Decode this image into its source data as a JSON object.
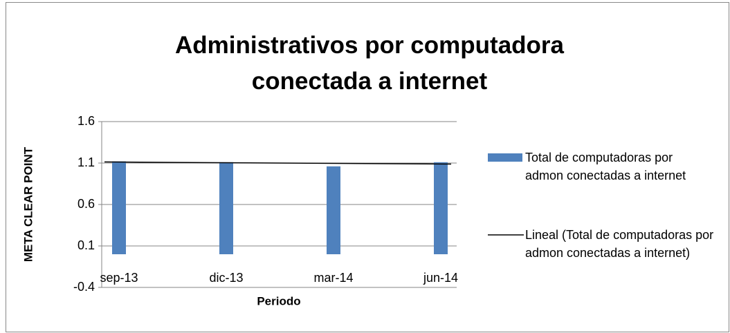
{
  "chart_data": {
    "type": "bar",
    "title": "Administrativos por computadora conectada a internet",
    "x_label": "Periodo",
    "y_label": "META CLEAR POINT",
    "categories": [
      "sep-13",
      "dic-13",
      "mar-14",
      "jun-14"
    ],
    "series": [
      {
        "name": "Total de computadoras por admon conectadas a internet",
        "color": "#4f81bd",
        "values": [
          1.12,
          1.11,
          1.06,
          1.11
        ]
      }
    ],
    "trendline": {
      "name": "Lineal (Total de computadoras por admon conectadas a internet)",
      "type": "linear",
      "color": "#000000"
    },
    "ylim": [
      -0.4,
      1.6
    ],
    "yticks": [
      -0.4,
      0.1,
      0.6,
      1.1,
      1.6
    ],
    "grid": true,
    "legend": "right"
  }
}
